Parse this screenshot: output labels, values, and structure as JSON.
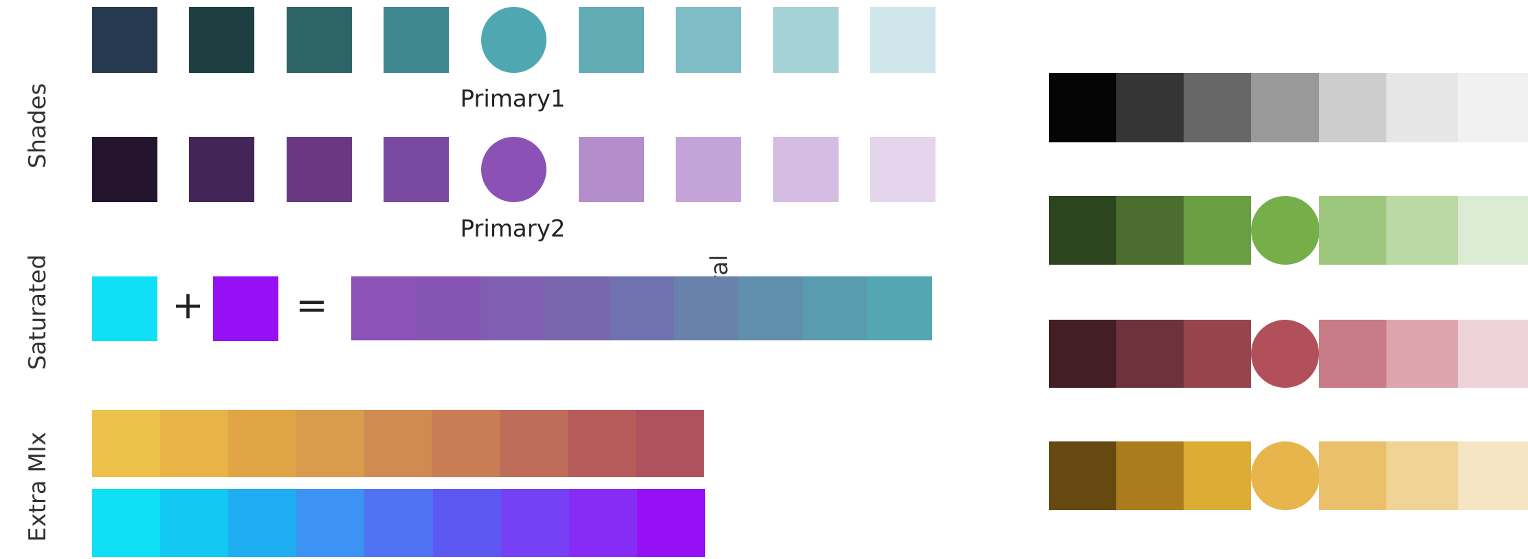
{
  "labels": {
    "shades": "Shades",
    "saturated": "Saturated",
    "extra_mix": "Extra MIx",
    "neutral": "Netural",
    "primary1": "Primary1",
    "primary2": "Primary2",
    "plus": "+",
    "equals": "="
  },
  "shades_row1": [
    "#253A4E",
    "#1E3E42",
    "#2F6467",
    "#3D8891",
    "#4FA7B1",
    "#62ACB6",
    "#7FBCC6",
    "#A4D2D6",
    "#CFE6EA"
  ],
  "shades_row2": [
    "#24142D",
    "#432657",
    "#6A3882",
    "#7A4AA0",
    "#8C51B5",
    "#B48DCB",
    "#C3A3D8",
    "#D4BCE3",
    "#E4D4EC"
  ],
  "saturated": {
    "left": "#0FE0F5",
    "right": "#9610F5",
    "gradient": [
      "#8C52B6",
      "#8655B3",
      "#7F60B0",
      "#7867AF",
      "#6F72AE",
      "#6882AC",
      "#608FAE",
      "#599CAF",
      "#52A7B2"
    ]
  },
  "extra_mix": {
    "row1": [
      "#EDC24B",
      "#E8B347",
      "#E1A545",
      "#D99B4C",
      "#D08B53",
      "#C87D55",
      "#BF6C5A",
      "#B65D5C",
      "#AE525F"
    ],
    "row2": [
      "#0FE0F5",
      "#13C9F4",
      "#20AEF3",
      "#3C93F3",
      "#5172F3",
      "#5E58F3",
      "#7640F5",
      "#872CF5",
      "#9610F5"
    ]
  },
  "neutral": {
    "gray": [
      "#050505",
      "#353535",
      "#676767",
      "#999999",
      "#CDCDCD",
      "#E6E6E6",
      "#F1F1F1"
    ],
    "green": [
      "#2C451E",
      "#4B6E30",
      "#6A9E43",
      "#76AF4A",
      "#9CC77D",
      "#BAD9A5",
      "#DCEBD3"
    ],
    "red": [
      "#431E25",
      "#6D323C",
      "#96454F",
      "#B1505A",
      "#C77B86",
      "#DEA4AD",
      "#EDD3D8"
    ],
    "yellow": [
      "#654910",
      "#AB7C1D",
      "#DDAC33",
      "#E7B54C",
      "#EAC06A",
      "#F0D397",
      "#F6E5C2"
    ]
  }
}
